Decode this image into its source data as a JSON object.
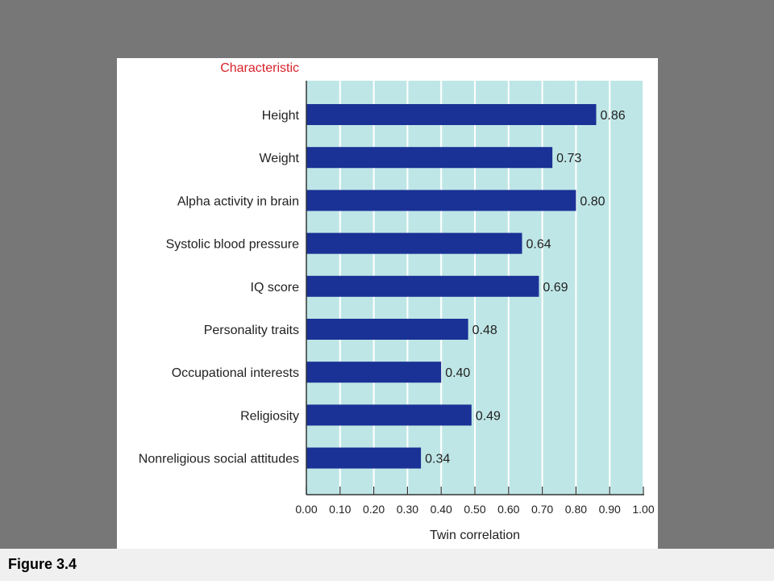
{
  "caption": "Figure 3.4",
  "chart_data": {
    "type": "bar",
    "orientation": "horizontal",
    "category_header": "Characteristic",
    "categories": [
      "Height",
      "Weight",
      "Alpha activity in brain",
      "Systolic blood pressure",
      "IQ score",
      "Personality traits",
      "Occupational interests",
      "Religiosity",
      "Nonreligious social attitudes"
    ],
    "values": [
      0.86,
      0.73,
      0.8,
      0.64,
      0.69,
      0.48,
      0.4,
      0.49,
      0.34
    ],
    "value_labels": [
      "0.86",
      "0.73",
      "0.80",
      "0.64",
      "0.69",
      "0.48",
      "0.40",
      "0.49",
      "0.34"
    ],
    "xlabel": "Twin correlation",
    "xlim": [
      0,
      1
    ],
    "xticks": [
      "0.00",
      "0.10",
      "0.20",
      "0.30",
      "0.40",
      "0.50",
      "0.60",
      "0.70",
      "0.80",
      "0.90",
      "1.00"
    ],
    "grid": true,
    "colors": {
      "bar": "#1a3296",
      "plot_background": "#bfe6e6",
      "gridline": "#ffffff",
      "header": "#d8232a",
      "text": "#222222"
    }
  }
}
